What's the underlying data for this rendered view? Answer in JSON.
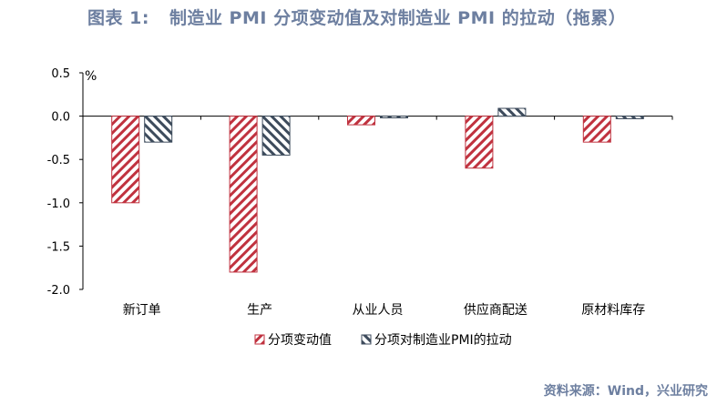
{
  "header": {
    "title_prefix": "图表 1:",
    "title_text": "制造业 PMI 分项变动值及对制造业 PMI 的拉动（拖累）"
  },
  "source": "资料来源：Wind，兴业研究",
  "chart_data": {
    "type": "bar",
    "unit_label": "%",
    "categories": [
      "新订单",
      "生产",
      "从业人员",
      "供应商配送",
      "原材料库存"
    ],
    "series": [
      {
        "name": "分项变动值",
        "values": [
          -1.0,
          -1.8,
          -0.1,
          -0.6,
          -0.3
        ],
        "color": "#c0323f",
        "pattern": "diag-right"
      },
      {
        "name": "分项对制造业PMI的拉动",
        "values": [
          -0.3,
          -0.45,
          -0.02,
          0.09,
          -0.03
        ],
        "color": "#3d4b5c",
        "pattern": "diag-left"
      }
    ],
    "ylim": [
      -2.0,
      0.5
    ],
    "yticks": [
      0.5,
      0.0,
      -0.5,
      -1.0,
      -1.5,
      -2.0
    ],
    "ytick_labels": [
      "0.5",
      "0.0",
      "-0.5",
      "-1.0",
      "-1.5",
      "-2.0"
    ],
    "legend_position": "bottom",
    "grid": false
  }
}
